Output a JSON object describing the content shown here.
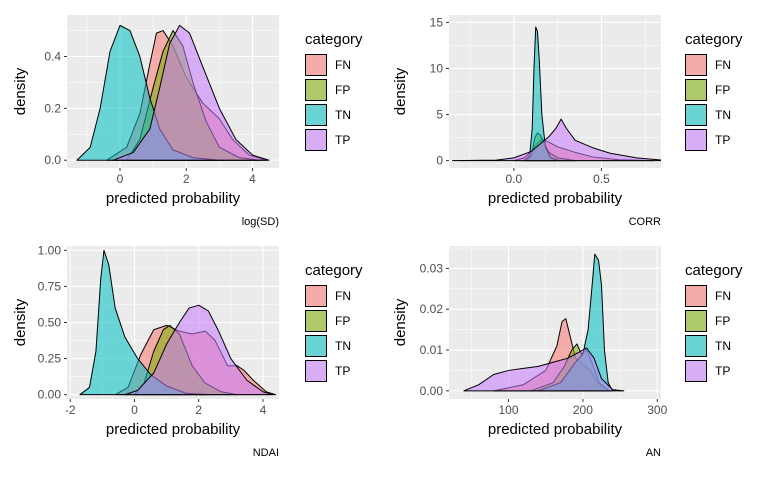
{
  "colors": {
    "panel_bg": "#EBEBEB",
    "grid_major": "#FFFFFF",
    "FN": "#F8766D",
    "FP": "#7CAE00",
    "TN": "#00BFC4",
    "TP": "#C77CFF"
  },
  "legend": {
    "title": "category",
    "items": [
      "FN",
      "FP",
      "TN",
      "TP"
    ]
  },
  "chart_data": [
    {
      "type": "area",
      "caption": "log(SD)",
      "xlabel": "predicted probability",
      "ylabel": "density",
      "xlim": [
        -1.6,
        4.8
      ],
      "ylim": [
        -0.03,
        0.56
      ],
      "x_ticks": [
        0,
        2,
        4
      ],
      "y_ticks": [
        0.0,
        0.2,
        0.4
      ],
      "y_tick_labels": [
        "0.0",
        "0.2",
        "0.4"
      ],
      "grid": true,
      "legend_position": "right",
      "series": [
        {
          "name": "FN",
          "points": [
            [
              -0.4,
              0
            ],
            [
              0.2,
              0.05
            ],
            [
              0.6,
              0.18
            ],
            [
              0.9,
              0.37
            ],
            [
              1.1,
              0.49
            ],
            [
              1.3,
              0.5
            ],
            [
              1.6,
              0.44
            ],
            [
              2.0,
              0.32
            ],
            [
              2.5,
              0.22
            ],
            [
              3.0,
              0.16
            ],
            [
              3.4,
              0.08
            ],
            [
              3.9,
              0.02
            ],
            [
              4.4,
              0
            ]
          ]
        },
        {
          "name": "FP",
          "points": [
            [
              0.2,
              0
            ],
            [
              0.6,
              0.08
            ],
            [
              1.0,
              0.28
            ],
            [
              1.3,
              0.42
            ],
            [
              1.6,
              0.5
            ],
            [
              1.9,
              0.44
            ],
            [
              2.2,
              0.3
            ],
            [
              2.6,
              0.15
            ],
            [
              3.0,
              0.05
            ],
            [
              3.6,
              0.01
            ],
            [
              4.2,
              0
            ]
          ]
        },
        {
          "name": "TN",
          "points": [
            [
              -1.3,
              0
            ],
            [
              -0.9,
              0.05
            ],
            [
              -0.6,
              0.2
            ],
            [
              -0.3,
              0.42
            ],
            [
              0,
              0.52
            ],
            [
              0.3,
              0.5
            ],
            [
              0.6,
              0.4
            ],
            [
              0.9,
              0.24
            ],
            [
              1.2,
              0.12
            ],
            [
              1.6,
              0.04
            ],
            [
              2.2,
              0.01
            ],
            [
              3.0,
              0
            ]
          ]
        },
        {
          "name": "TP",
          "points": [
            [
              -0.2,
              0
            ],
            [
              0.4,
              0.03
            ],
            [
              0.9,
              0.12
            ],
            [
              1.2,
              0.28
            ],
            [
              1.5,
              0.45
            ],
            [
              1.8,
              0.52
            ],
            [
              2.1,
              0.49
            ],
            [
              2.5,
              0.36
            ],
            [
              3.0,
              0.2
            ],
            [
              3.5,
              0.08
            ],
            [
              4.0,
              0.02
            ],
            [
              4.5,
              0
            ]
          ]
        }
      ]
    },
    {
      "type": "area",
      "caption": "CORR",
      "xlabel": "predicted probability",
      "ylabel": "density",
      "xlim": [
        -0.37,
        0.84
      ],
      "ylim": [
        -0.8,
        15.8
      ],
      "x_ticks": [
        0.0,
        0.5
      ],
      "x_tick_labels": [
        "0.0",
        "0.5"
      ],
      "y_ticks": [
        0,
        5,
        10,
        15
      ],
      "y_tick_labels": [
        "0",
        "5",
        "10",
        "15"
      ],
      "grid": true,
      "legend_position": "right",
      "series": [
        {
          "name": "FN",
          "points": [
            [
              0.0,
              0
            ],
            [
              0.06,
              0.3
            ],
            [
              0.1,
              1.0
            ],
            [
              0.13,
              1.8
            ],
            [
              0.16,
              2.3
            ],
            [
              0.2,
              2.0
            ],
            [
              0.25,
              1.5
            ],
            [
              0.35,
              0.9
            ],
            [
              0.45,
              0.4
            ],
            [
              0.6,
              0.1
            ],
            [
              0.8,
              0
            ]
          ]
        },
        {
          "name": "FP",
          "points": [
            [
              0.07,
              0
            ],
            [
              0.1,
              0.5
            ],
            [
              0.12,
              2.5
            ],
            [
              0.135,
              3.0
            ],
            [
              0.15,
              2.8
            ],
            [
              0.17,
              2.0
            ],
            [
              0.2,
              0.9
            ],
            [
              0.25,
              0.3
            ],
            [
              0.35,
              0
            ]
          ]
        },
        {
          "name": "TN",
          "points": [
            [
              0.06,
              0
            ],
            [
              0.09,
              0.5
            ],
            [
              0.105,
              3.5
            ],
            [
              0.115,
              10.0
            ],
            [
              0.125,
              14.5
            ],
            [
              0.135,
              14.0
            ],
            [
              0.145,
              11.0
            ],
            [
              0.16,
              5.0
            ],
            [
              0.18,
              1.5
            ],
            [
              0.21,
              0.3
            ],
            [
              0.26,
              0
            ]
          ]
        },
        {
          "name": "TP",
          "points": [
            [
              -0.35,
              0
            ],
            [
              -0.1,
              0.05
            ],
            [
              0.0,
              0.3
            ],
            [
              0.1,
              1.0
            ],
            [
              0.15,
              1.8
            ],
            [
              0.2,
              2.6
            ],
            [
              0.24,
              3.5
            ],
            [
              0.27,
              4.5
            ],
            [
              0.3,
              3.5
            ],
            [
              0.35,
              2.2
            ],
            [
              0.45,
              1.4
            ],
            [
              0.55,
              0.8
            ],
            [
              0.7,
              0.3
            ],
            [
              0.85,
              0.05
            ]
          ]
        }
      ]
    },
    {
      "type": "area",
      "caption": "NDAI",
      "xlabel": "predicted probability",
      "ylabel": "density",
      "xlim": [
        -2.1,
        4.5
      ],
      "ylim": [
        -0.03,
        1.03
      ],
      "x_ticks": [
        -2,
        0,
        2,
        4
      ],
      "y_ticks": [
        0.0,
        0.25,
        0.5,
        0.75,
        1.0
      ],
      "y_tick_labels": [
        "0.00",
        "0.25",
        "0.50",
        "0.75",
        "1.00"
      ],
      "grid": true,
      "legend_position": "right",
      "series": [
        {
          "name": "FN",
          "points": [
            [
              -0.6,
              0
            ],
            [
              -0.2,
              0.05
            ],
            [
              0.2,
              0.28
            ],
            [
              0.6,
              0.45
            ],
            [
              1.0,
              0.48
            ],
            [
              1.4,
              0.44
            ],
            [
              1.8,
              0.42
            ],
            [
              2.2,
              0.44
            ],
            [
              2.5,
              0.38
            ],
            [
              2.9,
              0.2
            ],
            [
              3.2,
              0.2
            ],
            [
              3.4,
              0.17
            ],
            [
              3.7,
              0.1
            ],
            [
              4.1,
              0.02
            ],
            [
              4.4,
              0
            ]
          ]
        },
        {
          "name": "FP",
          "points": [
            [
              0,
              0
            ],
            [
              0.3,
              0.08
            ],
            [
              0.6,
              0.3
            ],
            [
              0.9,
              0.45
            ],
            [
              1.1,
              0.48
            ],
            [
              1.4,
              0.42
            ],
            [
              1.8,
              0.2
            ],
            [
              2.2,
              0.08
            ],
            [
              2.7,
              0.02
            ],
            [
              3.2,
              0
            ]
          ]
        },
        {
          "name": "TN",
          "points": [
            [
              -1.7,
              0
            ],
            [
              -1.4,
              0.05
            ],
            [
              -1.2,
              0.3
            ],
            [
              -1.05,
              0.8
            ],
            [
              -0.95,
              1.0
            ],
            [
              -0.8,
              0.9
            ],
            [
              -0.6,
              0.6
            ],
            [
              -0.3,
              0.4
            ],
            [
              0.1,
              0.25
            ],
            [
              0.5,
              0.14
            ],
            [
              1.0,
              0.06
            ],
            [
              1.6,
              0.01
            ],
            [
              2.3,
              0
            ]
          ]
        },
        {
          "name": "TP",
          "points": [
            [
              -0.3,
              0
            ],
            [
              0.1,
              0.03
            ],
            [
              0.6,
              0.15
            ],
            [
              1.0,
              0.35
            ],
            [
              1.4,
              0.5
            ],
            [
              1.7,
              0.6
            ],
            [
              2.0,
              0.62
            ],
            [
              2.3,
              0.58
            ],
            [
              2.6,
              0.45
            ],
            [
              3.0,
              0.25
            ],
            [
              3.5,
              0.1
            ],
            [
              4.0,
              0.02
            ],
            [
              4.3,
              0
            ]
          ]
        }
      ]
    },
    {
      "type": "area",
      "caption": "AN",
      "xlabel": "predicted probability",
      "ylabel": "density",
      "xlim": [
        20,
        305
      ],
      "ylim": [
        -0.002,
        0.0355
      ],
      "x_ticks": [
        100,
        200,
        300
      ],
      "y_ticks": [
        0.0,
        0.01,
        0.02,
        0.03
      ],
      "y_tick_labels": [
        "0.00",
        "0.01",
        "0.02",
        "0.03"
      ],
      "grid": true,
      "legend_position": "right",
      "series": [
        {
          "name": "FN",
          "points": [
            [
              80,
              0
            ],
            [
              120,
              0.0015
            ],
            [
              150,
              0.005
            ],
            [
              165,
              0.011
            ],
            [
              172,
              0.017
            ],
            [
              177,
              0.0177
            ],
            [
              182,
              0.014
            ],
            [
              190,
              0.008
            ],
            [
              200,
              0.0065
            ],
            [
              210,
              0.005
            ],
            [
              220,
              0.002
            ],
            [
              235,
              0
            ]
          ]
        },
        {
          "name": "FP",
          "points": [
            [
              130,
              0
            ],
            [
              160,
              0.002
            ],
            [
              175,
              0.006
            ],
            [
              185,
              0.01
            ],
            [
              192,
              0.0115
            ],
            [
              198,
              0.009
            ],
            [
              205,
              0.01
            ],
            [
              212,
              0.007
            ],
            [
              222,
              0.002
            ],
            [
              235,
              0
            ]
          ]
        },
        {
          "name": "TN",
          "points": [
            [
              140,
              0
            ],
            [
              170,
              0.002
            ],
            [
              190,
              0.007
            ],
            [
              200,
              0.009
            ],
            [
              207,
              0.015
            ],
            [
              212,
              0.025
            ],
            [
              216,
              0.0335
            ],
            [
              221,
              0.032
            ],
            [
              225,
              0.026
            ],
            [
              229,
              0.01
            ],
            [
              234,
              0.002
            ],
            [
              240,
              0
            ]
          ]
        },
        {
          "name": "TP",
          "points": [
            [
              40,
              0
            ],
            [
              60,
              0.0015
            ],
            [
              80,
              0.004
            ],
            [
              100,
              0.005
            ],
            [
              120,
              0.0055
            ],
            [
              140,
              0.006
            ],
            [
              160,
              0.007
            ],
            [
              180,
              0.008
            ],
            [
              195,
              0.0095
            ],
            [
              205,
              0.0105
            ],
            [
              215,
              0.008
            ],
            [
              225,
              0.003
            ],
            [
              240,
              0.0003
            ],
            [
              255,
              0
            ]
          ]
        }
      ]
    }
  ]
}
